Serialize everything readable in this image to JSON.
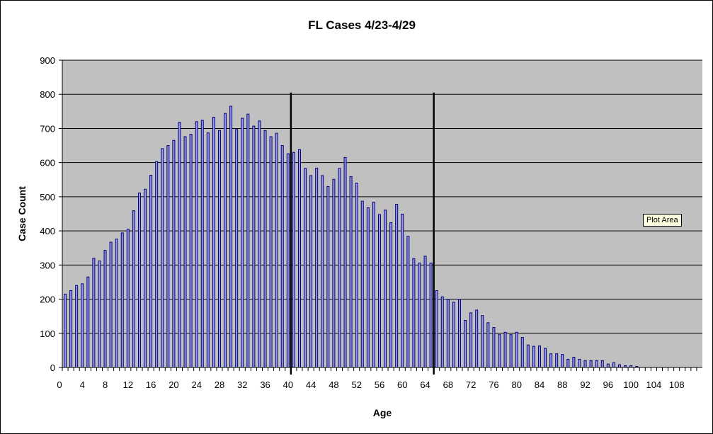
{
  "chart_data": {
    "type": "bar",
    "title": "FL Cases 4/23-4/29",
    "xlabel": "Age",
    "ylabel": "Case Count",
    "ylim": [
      0,
      900
    ],
    "yticks": [
      0,
      100,
      200,
      300,
      400,
      500,
      600,
      700,
      800,
      900
    ],
    "xtick_labels": [
      "0",
      "4",
      "8",
      "12",
      "16",
      "20",
      "24",
      "28",
      "32",
      "36",
      "40",
      "44",
      "48",
      "52",
      "56",
      "60",
      "64",
      "68",
      "72",
      "76",
      "80",
      "84",
      "88",
      "92",
      "96",
      "100",
      "104",
      "108"
    ],
    "grid": true,
    "x": [
      0,
      1,
      2,
      3,
      4,
      5,
      6,
      7,
      8,
      9,
      10,
      11,
      12,
      13,
      14,
      15,
      16,
      17,
      18,
      19,
      20,
      21,
      22,
      23,
      24,
      25,
      26,
      27,
      28,
      29,
      30,
      31,
      32,
      33,
      34,
      35,
      36,
      37,
      38,
      39,
      40,
      41,
      42,
      43,
      44,
      45,
      46,
      47,
      48,
      49,
      50,
      51,
      52,
      53,
      54,
      55,
      56,
      57,
      58,
      59,
      60,
      61,
      62,
      63,
      64,
      65,
      66,
      67,
      68,
      69,
      70,
      71,
      72,
      73,
      74,
      75,
      76,
      77,
      78,
      79,
      80,
      81,
      82,
      83,
      84,
      85,
      86,
      87,
      88,
      89,
      90,
      91,
      92,
      93,
      94,
      95,
      96,
      97,
      98,
      99,
      100,
      101,
      102,
      103,
      104,
      105,
      106,
      107,
      108,
      109,
      110,
      111
    ],
    "values": [
      215,
      225,
      240,
      245,
      265,
      320,
      312,
      343,
      367,
      376,
      394,
      405,
      459,
      511,
      522,
      563,
      603,
      641,
      650,
      665,
      718,
      676,
      683,
      720,
      724,
      687,
      733,
      694,
      744,
      765,
      697,
      730,
      742,
      707,
      722,
      694,
      676,
      686,
      650,
      626,
      630,
      638,
      583,
      562,
      584,
      562,
      530,
      551,
      583,
      615,
      559,
      540,
      487,
      468,
      484,
      448,
      461,
      424,
      478,
      449,
      384,
      319,
      306,
      326,
      306,
      225,
      207,
      200,
      191,
      200,
      138,
      160,
      168,
      152,
      131,
      117,
      96,
      103,
      96,
      103,
      88,
      66,
      62,
      63,
      56,
      40,
      40,
      38,
      24,
      30,
      24,
      20,
      20,
      20,
      20,
      10,
      14,
      8,
      5,
      5,
      3,
      0,
      0,
      0,
      0,
      0,
      0,
      0,
      0,
      0,
      0,
      0
    ],
    "reference_lines_x": [
      40,
      65
    ],
    "colors": {
      "plot_bg": "#c0c0c0",
      "bar_fill": "#9999dd",
      "bar_stroke": "#000080"
    }
  },
  "tooltip": "Plot Area"
}
